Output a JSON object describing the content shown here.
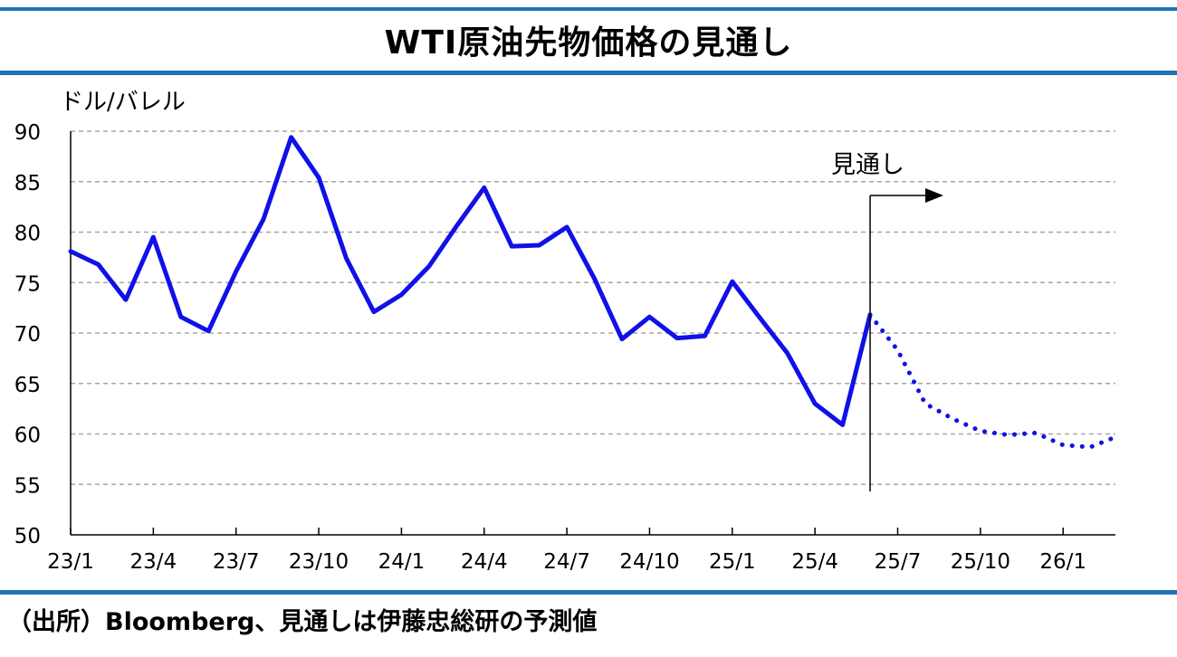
{
  "title": "WTI原油先物価格の見通し",
  "source": "（出所）Bloomberg、見通しは伊藤忠総研の予測値",
  "colors": {
    "accent_rule": "#1f73b7",
    "series": "#1010e8",
    "grid": "#a6a6a6"
  },
  "chart_data": {
    "type": "line",
    "title": "WTI原油先物価格の見通し",
    "ylabel": "ドル/バレル",
    "xlabel": "",
    "ylim": [
      50,
      90
    ],
    "yticks": [
      50,
      55,
      60,
      65,
      70,
      75,
      80,
      85,
      90
    ],
    "x_tick_labels": [
      "23/1",
      "23/4",
      "23/7",
      "23/10",
      "24/1",
      "24/4",
      "24/7",
      "24/10",
      "25/1",
      "25/4",
      "25/7",
      "25/10",
      "26/1"
    ],
    "grid": true,
    "legend": "none",
    "annotation": {
      "text": "見通し",
      "at": "25/6",
      "arrow": "right"
    },
    "series": [
      {
        "style": "solid",
        "x": [
          "23/1",
          "23/2",
          "23/3",
          "23/4",
          "23/5",
          "23/6",
          "23/7",
          "23/8",
          "23/9",
          "23/10",
          "23/11",
          "23/12",
          "24/1",
          "24/2",
          "24/3",
          "24/4",
          "24/5",
          "24/6",
          "24/7",
          "24/8",
          "24/9",
          "24/10",
          "24/11",
          "24/12",
          "25/1",
          "25/2",
          "25/3",
          "25/4",
          "25/5",
          "25/6"
        ],
        "values": [
          78.1,
          76.8,
          73.3,
          79.5,
          71.6,
          70.2,
          76.1,
          81.3,
          89.4,
          85.4,
          77.4,
          72.1,
          73.8,
          76.6,
          80.6,
          84.4,
          78.6,
          78.7,
          80.5,
          75.4,
          69.4,
          71.6,
          69.5,
          69.7,
          75.1,
          71.5,
          68.0,
          63.0,
          60.9,
          71.8
        ]
      },
      {
        "style": "dotted",
        "x": [
          "25/6",
          "25/7",
          "25/8",
          "25/9",
          "25/10",
          "25/11",
          "25/12",
          "26/1",
          "26/2",
          "26/3"
        ],
        "values": [
          71.8,
          68.3,
          63.0,
          61.5,
          60.3,
          59.9,
          60.1,
          58.9,
          58.7,
          59.8
        ]
      }
    ]
  }
}
